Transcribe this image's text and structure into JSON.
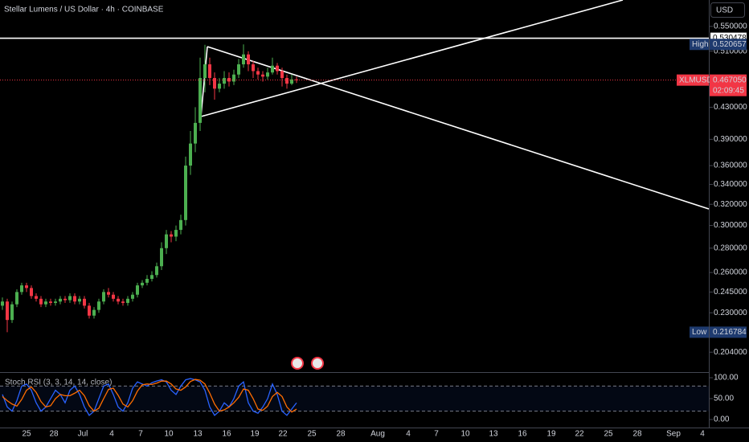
{
  "header": {
    "title": "Stellar Lumens / US Dollar · 4h · COINBASE",
    "currency": "USD"
  },
  "chart_data": [
    {
      "type": "candlestick",
      "log_scale": true,
      "up_color": "#4caf50",
      "down_color": "#f23645",
      "ylim": [
        0.192,
        0.596
      ],
      "yticks": [
        {
          "value": 0.55,
          "label": "0.550000"
        },
        {
          "value": 0.51,
          "label": "0.510000"
        },
        {
          "value": 0.43,
          "label": "0.430000"
        },
        {
          "value": 0.39,
          "label": "0.390000"
        },
        {
          "value": 0.36,
          "label": "0.360000"
        },
        {
          "value": 0.34,
          "label": "0.340000"
        },
        {
          "value": 0.32,
          "label": "0.320000"
        },
        {
          "value": 0.3,
          "label": "0.300000"
        },
        {
          "value": 0.28,
          "label": "0.280000"
        },
        {
          "value": 0.26,
          "label": "0.260000"
        },
        {
          "value": 0.245,
          "label": "0.245000"
        },
        {
          "value": 0.23,
          "label": "0.230000"
        },
        {
          "value": 0.204,
          "label": "0.204000"
        }
      ],
      "xticks": [
        "25",
        "28",
        "Jul",
        "4",
        "7",
        "10",
        "13",
        "16",
        "19",
        "22",
        "25",
        "28",
        "Aug",
        "4",
        "7",
        "10",
        "13",
        "16",
        "19",
        "22",
        "25",
        "28",
        "Sep",
        "4"
      ],
      "open": [
        0.235,
        0.238,
        0.225,
        0.236,
        0.245,
        0.25,
        0.248,
        0.242,
        0.24,
        0.236,
        0.238,
        0.237,
        0.238,
        0.24,
        0.239,
        0.242,
        0.238,
        0.24,
        0.235,
        0.228,
        0.232,
        0.238,
        0.245,
        0.243,
        0.24,
        0.238,
        0.237,
        0.24,
        0.243,
        0.25,
        0.252,
        0.255,
        0.258,
        0.265,
        0.28,
        0.292,
        0.29,
        0.296,
        0.305,
        0.36,
        0.385,
        0.41,
        0.47,
        0.49,
        0.47,
        0.455,
        0.462,
        0.47,
        0.465,
        0.475,
        0.49,
        0.505,
        0.49,
        0.48,
        0.475,
        0.472,
        0.478,
        0.488,
        0.48,
        0.47,
        0.462,
        0.468
      ],
      "high": [
        0.241,
        0.24,
        0.238,
        0.247,
        0.252,
        0.252,
        0.25,
        0.244,
        0.242,
        0.24,
        0.24,
        0.24,
        0.242,
        0.242,
        0.244,
        0.244,
        0.242,
        0.242,
        0.237,
        0.234,
        0.24,
        0.247,
        0.248,
        0.245,
        0.242,
        0.24,
        0.242,
        0.245,
        0.252,
        0.254,
        0.258,
        0.261,
        0.268,
        0.285,
        0.296,
        0.295,
        0.3,
        0.31,
        0.37,
        0.4,
        0.43,
        0.5,
        0.52,
        0.5,
        0.478,
        0.47,
        0.48,
        0.478,
        0.482,
        0.498,
        0.520657,
        0.51,
        0.495,
        0.485,
        0.48,
        0.485,
        0.5,
        0.492,
        0.485,
        0.475,
        0.475,
        0.472
      ],
      "low": [
        0.232,
        0.216784,
        0.223,
        0.234,
        0.243,
        0.245,
        0.24,
        0.238,
        0.234,
        0.234,
        0.235,
        0.235,
        0.236,
        0.237,
        0.237,
        0.236,
        0.236,
        0.233,
        0.226,
        0.226,
        0.23,
        0.236,
        0.241,
        0.238,
        0.236,
        0.235,
        0.235,
        0.238,
        0.241,
        0.248,
        0.25,
        0.253,
        0.256,
        0.262,
        0.275,
        0.285,
        0.286,
        0.292,
        0.3,
        0.35,
        0.375,
        0.4,
        0.45,
        0.46,
        0.44,
        0.45,
        0.455,
        0.458,
        0.46,
        0.47,
        0.485,
        0.48,
        0.47,
        0.468,
        0.465,
        0.468,
        0.475,
        0.475,
        0.458,
        0.455,
        0.46,
        0.463
      ],
      "close": [
        0.238,
        0.225,
        0.236,
        0.245,
        0.25,
        0.248,
        0.242,
        0.24,
        0.236,
        0.238,
        0.237,
        0.238,
        0.24,
        0.239,
        0.242,
        0.238,
        0.24,
        0.235,
        0.228,
        0.232,
        0.238,
        0.245,
        0.243,
        0.24,
        0.238,
        0.237,
        0.24,
        0.243,
        0.25,
        0.252,
        0.255,
        0.258,
        0.265,
        0.28,
        0.292,
        0.29,
        0.296,
        0.305,
        0.36,
        0.385,
        0.41,
        0.47,
        0.49,
        0.47,
        0.455,
        0.462,
        0.47,
        0.465,
        0.475,
        0.49,
        0.505,
        0.49,
        0.48,
        0.475,
        0.472,
        0.478,
        0.488,
        0.48,
        0.47,
        0.462,
        0.468,
        0.46705
      ],
      "horizontal_line": 0.530478,
      "high_marker": {
        "name": "High",
        "value": 0.520657
      },
      "low_marker": {
        "name": "Low",
        "value": 0.216784
      },
      "last_price": {
        "name": "XLMUSD",
        "value": 0.46705,
        "value_label": "0.467050",
        "countdown": "02:09:45",
        "color": "#f23645"
      }
    },
    {
      "type": "line",
      "title": "Stoch RSI (3, 3, 14, 14, close)",
      "ylim": [
        -19.2,
        113.5
      ],
      "yticks": [
        {
          "value": 100,
          "label": "100.00"
        },
        {
          "value": 50,
          "label": "50.00"
        },
        {
          "value": 0,
          "label": "0.00"
        }
      ],
      "bands": [
        20,
        80
      ],
      "series": [
        {
          "color": "#2962ff",
          "values": [
            60,
            30,
            20,
            45,
            80,
            85,
            70,
            40,
            20,
            30,
            50,
            70,
            60,
            40,
            70,
            80,
            60,
            30,
            10,
            20,
            50,
            80,
            85,
            60,
            30,
            20,
            40,
            75,
            90,
            85,
            80,
            88,
            92,
            95,
            90,
            70,
            60,
            80,
            95,
            98,
            95,
            90,
            70,
            30,
            10,
            20,
            40,
            30,
            50,
            80,
            90,
            40,
            20,
            15,
            30,
            50,
            85,
            60,
            20,
            10,
            25,
            40
          ]
        },
        {
          "color": "#ff6d00",
          "values": [
            55,
            45,
            37,
            32,
            48,
            70,
            78,
            65,
            43,
            30,
            33,
            50,
            60,
            57,
            57,
            63,
            70,
            57,
            33,
            20,
            27,
            50,
            72,
            75,
            58,
            37,
            30,
            45,
            68,
            83,
            85,
            84,
            87,
            92,
            92,
            85,
            73,
            70,
            78,
            91,
            96,
            94,
            85,
            63,
            37,
            20,
            23,
            30,
            40,
            53,
            73,
            70,
            50,
            25,
            22,
            32,
            55,
            65,
            55,
            30,
            18,
            25
          ]
        }
      ]
    }
  ]
}
